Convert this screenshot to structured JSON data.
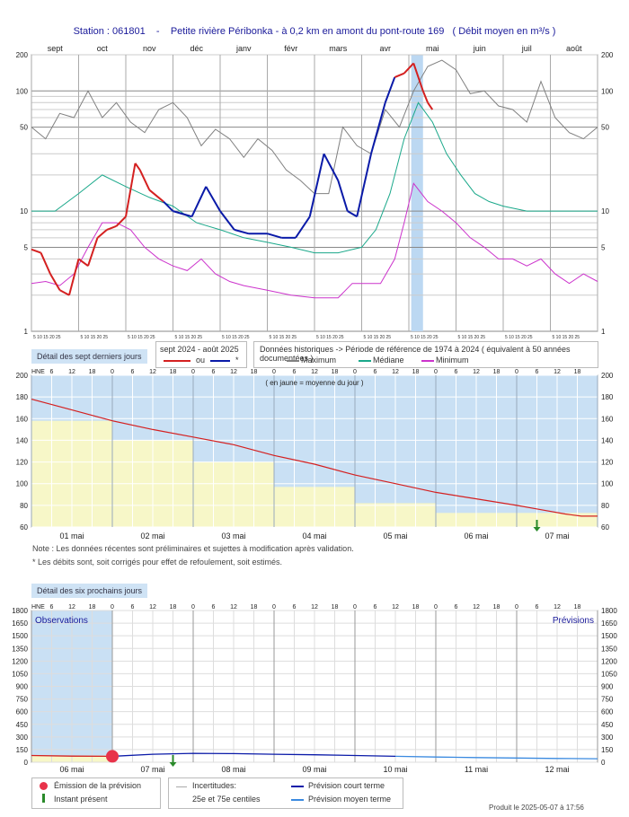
{
  "header": {
    "station": "Station : 061801",
    "sep": "-",
    "title": "Petite rivière Péribonka - à 0,2 km en amont du pont-route 169",
    "units": "( Débit moyen en m³/s )"
  },
  "panel1": {
    "months": [
      "sept",
      "oct",
      "nov",
      "déc",
      "janv",
      "févr",
      "mars",
      "avr",
      "mai",
      "juin",
      "juil",
      "août"
    ],
    "day_ticks": "5 10 15 20 25",
    "y_ticks": [
      "200",
      "100",
      "50",
      "10",
      "5",
      "1"
    ],
    "detail_btn": "Détail des sept derniers jours",
    "legend_period": "sept 2024 - août 2025",
    "legend_ou": "ou",
    "legend_star": "*",
    "legend_hist": "Données historiques -> Période de référence  de 1974 à 2024  ( équivalent à 50 années documentées )",
    "legend_max": "Maximum",
    "legend_med": "Médiane",
    "legend_min": "Minimum",
    "colors": {
      "observed": "#d42020",
      "estimated": "#0a1aa8",
      "max": "#808080",
      "median": "#1aa88a",
      "min": "#cc33cc"
    }
  },
  "panel2": {
    "hne": "HNE",
    "hours": [
      "6",
      "12",
      "18",
      "0",
      "6",
      "12",
      "18",
      "0",
      "6",
      "12",
      "18",
      "0",
      "6",
      "12",
      "18",
      "0",
      "6",
      "12",
      "18",
      "0",
      "6",
      "12",
      "18",
      "0",
      "6",
      "12",
      "18"
    ],
    "y_ticks": [
      "200",
      "180",
      "160",
      "140",
      "120",
      "100",
      "80",
      "60"
    ],
    "days": [
      "01 mai",
      "02 mai",
      "03 mai",
      "04 mai",
      "05 mai",
      "06 mai",
      "07 mai"
    ],
    "note_yellow": "( en jaune = moyenne du jour )",
    "note1": "Note : Les données récentes sont préliminaires et sujettes à modification après validation.",
    "note2": "* Les débits sont, soit corrigés pour effet de refoulement, soit estimés."
  },
  "panel3": {
    "detail_btn": "Détail des six prochains jours",
    "hne": "HNE",
    "hours": [
      "6",
      "12",
      "18",
      "0",
      "6",
      "12",
      "18",
      "0",
      "6",
      "12",
      "18",
      "0",
      "6",
      "12",
      "18",
      "0",
      "6",
      "12",
      "18",
      "0",
      "6",
      "12",
      "18",
      "0",
      "6",
      "12",
      "18"
    ],
    "y_ticks": [
      "1800",
      "1650",
      "1500",
      "1350",
      "1200",
      "1050",
      "900",
      "750",
      "600",
      "450",
      "300",
      "150",
      "0"
    ],
    "days": [
      "06 mai",
      "07 mai",
      "08 mai",
      "09 mai",
      "10 mai",
      "11 mai",
      "12 mai"
    ],
    "observations": "Observations",
    "previsions": "Prévisions",
    "legend_emission": "Émission de la prévision",
    "legend_now": "Instant présent",
    "legend_incert": "Incertitudes:",
    "legend_centiles": "25e et 75e centiles",
    "legend_court": "Prévision court terme",
    "legend_moyen": "Prévision moyen terme"
  },
  "footer": "Produit le 2025-05-07 à 17:56",
  "chart_data": [
    {
      "type": "line",
      "scale": "log",
      "ylim": [
        1,
        200
      ],
      "x_categories": [
        "sept",
        "oct",
        "nov",
        "déc",
        "janv",
        "févr",
        "mars",
        "avr",
        "mai",
        "juin",
        "juil",
        "août"
      ],
      "series": [
        {
          "name": "Maximum",
          "x": [
            0,
            0.3,
            0.6,
            0.9,
            1.2,
            1.5,
            1.8,
            2.1,
            2.4,
            2.7,
            3.0,
            3.3,
            3.6,
            3.9,
            4.2,
            4.5,
            4.8,
            5.1,
            5.4,
            5.7,
            6.0,
            6.3,
            6.6,
            6.9,
            7.2,
            7.5,
            7.8,
            8.1,
            8.4,
            8.7,
            9.0,
            9.3,
            9.6,
            9.9,
            10.2,
            10.5,
            10.8,
            11.1,
            11.4,
            11.7,
            12.0
          ],
          "y": [
            50,
            40,
            65,
            60,
            100,
            60,
            80,
            55,
            45,
            70,
            80,
            60,
            35,
            48,
            40,
            28,
            40,
            32,
            22,
            18,
            14,
            14,
            50,
            35,
            30,
            70,
            50,
            100,
            160,
            180,
            150,
            95,
            100,
            75,
            70,
            55,
            120,
            60,
            45,
            40,
            50
          ]
        },
        {
          "name": "Médiane",
          "x": [
            0,
            0.5,
            1.0,
            1.5,
            2.0,
            2.5,
            3.0,
            3.5,
            4.0,
            4.5,
            5.0,
            5.5,
            6.0,
            6.5,
            7.0,
            7.3,
            7.6,
            7.9,
            8.2,
            8.5,
            8.8,
            9.1,
            9.4,
            9.7,
            10.0,
            10.5,
            11.0,
            11.5,
            12.0
          ],
          "y": [
            10,
            10,
            14,
            20,
            16,
            13,
            11,
            8,
            7,
            6,
            5.5,
            5,
            4.5,
            4.5,
            5,
            7,
            14,
            40,
            80,
            55,
            30,
            20,
            14,
            12,
            11,
            10,
            10,
            10,
            10
          ]
        },
        {
          "name": "Minimum",
          "x": [
            0,
            0.3,
            0.6,
            0.9,
            1.2,
            1.5,
            1.8,
            2.1,
            2.4,
            2.7,
            3.0,
            3.3,
            3.6,
            3.9,
            4.2,
            4.5,
            5.0,
            5.5,
            6.0,
            6.5,
            6.8,
            7.1,
            7.4,
            7.7,
            7.9,
            8.1,
            8.4,
            8.7,
            9.0,
            9.3,
            9.6,
            9.9,
            10.2,
            10.5,
            10.8,
            11.1,
            11.4,
            11.7,
            12.0
          ],
          "y": [
            2.5,
            2.6,
            2.4,
            3,
            5,
            8,
            8,
            7,
            5,
            4,
            3.5,
            3.2,
            4,
            3,
            2.6,
            2.4,
            2.2,
            2,
            1.9,
            1.9,
            2.5,
            2.5,
            2.5,
            4,
            8,
            17,
            12,
            10,
            8,
            6,
            5,
            4,
            4,
            3.5,
            4,
            3,
            2.5,
            3,
            2.6
          ]
        },
        {
          "name": "sept 2024 - août 2025",
          "x": [
            0,
            0.2,
            0.4,
            0.6,
            0.8,
            1.0,
            1.2,
            1.4,
            1.6,
            1.8,
            2.0,
            2.2,
            2.3,
            2.5,
            2.8,
            3.0,
            3.4,
            3.7,
            4.0,
            4.3,
            4.6,
            5.0,
            5.3,
            5.6,
            5.9,
            6.2,
            6.5,
            6.7,
            6.9,
            7.2,
            7.5,
            7.7,
            7.9,
            8.1,
            8.3,
            8.4,
            8.5
          ],
          "y": [
            4.8,
            4.5,
            3,
            2.2,
            2,
            4,
            3.5,
            6,
            7,
            7.5,
            9,
            25,
            22,
            15,
            12,
            10,
            9,
            16,
            10,
            7,
            6.5,
            6.5,
            6,
            6,
            9,
            30,
            18,
            10,
            9,
            30,
            80,
            130,
            140,
            170,
            100,
            80,
            70
          ]
        }
      ]
    },
    {
      "type": "line",
      "ylim": [
        60,
        200
      ],
      "categories": [
        "01 mai",
        "02 mai",
        "03 mai",
        "04 mai",
        "05 mai",
        "06 mai",
        "07 mai"
      ],
      "daily_mean": [
        158,
        140,
        120,
        97,
        82,
        73,
        73
      ],
      "series": [
        {
          "x": [
            0,
            0.5,
            1,
            1.5,
            2,
            2.5,
            3,
            3.5,
            4,
            4.5,
            5,
            5.5,
            6,
            6.3,
            6.6,
            6.8,
            7
          ],
          "y": [
            178,
            168,
            158,
            150,
            143,
            136,
            126,
            118,
            108,
            100,
            92,
            86,
            80,
            76,
            72,
            70,
            70
          ]
        }
      ]
    },
    {
      "type": "line",
      "ylim": [
        0,
        1800
      ],
      "categories": [
        "06 mai",
        "07 mai",
        "08 mai",
        "09 mai",
        "10 mai",
        "11 mai",
        "12 mai"
      ],
      "series": [
        {
          "name": "Observations",
          "x": [
            0,
            0.5,
            1
          ],
          "y": [
            80,
            72,
            70
          ]
        },
        {
          "name": "Prévision court terme",
          "x": [
            1,
            1.5,
            2,
            2.5,
            3,
            3.5,
            4,
            4.5
          ],
          "y": [
            70,
            95,
            105,
            102,
            95,
            88,
            80,
            70
          ]
        },
        {
          "name": "Prévision moyen terme",
          "x": [
            4.5,
            5,
            5.5,
            6,
            6.5,
            7
          ],
          "y": [
            70,
            62,
            55,
            50,
            45,
            42
          ]
        }
      ]
    }
  ]
}
